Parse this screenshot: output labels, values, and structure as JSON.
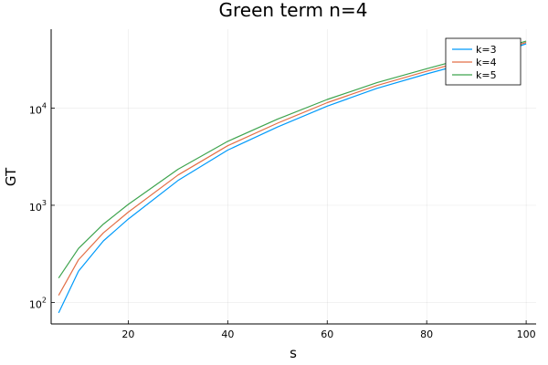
{
  "chart_data": {
    "type": "line",
    "title": "Green term n=4",
    "xlabel": "s",
    "ylabel": "GT",
    "xlim": [
      4.5,
      102
    ],
    "ylim": [
      60,
      65000
    ],
    "yscale": "log",
    "grid": true,
    "legend_position": "top-right",
    "x_ticks": [
      20,
      40,
      60,
      80,
      100
    ],
    "y_ticks": [
      {
        "value": 100,
        "base": "10",
        "exp": "2"
      },
      {
        "value": 1000,
        "base": "10",
        "exp": "3"
      },
      {
        "value": 10000,
        "base": "10",
        "exp": "4"
      }
    ],
    "series": [
      {
        "name": "k=3",
        "color": "#009AFA",
        "x": [
          6,
          10,
          15,
          20,
          30,
          40,
          50,
          60,
          70,
          80,
          90,
          100
        ],
        "y": [
          78,
          210,
          430,
          720,
          1800,
          3700,
          6400,
          10500,
          16000,
          22500,
          31000,
          46000
        ]
      },
      {
        "name": "k=4",
        "color": "#E36F47",
        "x": [
          6,
          10,
          15,
          20,
          30,
          40,
          50,
          60,
          70,
          80,
          90,
          100
        ],
        "y": [
          118,
          275,
          520,
          850,
          2050,
          4100,
          7000,
          11400,
          17100,
          24000,
          33000,
          47500
        ]
      },
      {
        "name": "k=5",
        "color": "#3EA44E",
        "x": [
          6,
          10,
          15,
          20,
          30,
          40,
          50,
          60,
          70,
          80,
          90,
          100
        ],
        "y": [
          178,
          360,
          640,
          1020,
          2350,
          4550,
          7700,
          12300,
          18300,
          25500,
          35000,
          49000
        ]
      }
    ]
  }
}
